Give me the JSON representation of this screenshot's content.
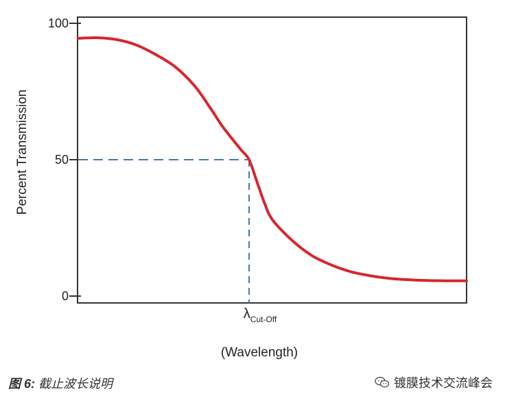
{
  "chart_data": {
    "type": "line",
    "title": "",
    "xlabel": "(Wavelength)",
    "ylabel": "Percent Transmission",
    "ylim": [
      0,
      100
    ],
    "xlim": [
      0,
      1
    ],
    "y_ticks": [
      0,
      50,
      100
    ],
    "grid": false,
    "cutoff": {
      "symbol": "λ",
      "subscript": "Cut-Off",
      "x": 0.44,
      "y": 50
    },
    "series": [
      {
        "color": "#d7262b",
        "x": [
          0.0,
          0.05,
          0.1,
          0.15,
          0.2,
          0.25,
          0.3,
          0.34,
          0.37,
          0.4,
          0.42,
          0.44,
          0.46,
          0.48,
          0.5,
          0.55,
          0.6,
          0.65,
          0.7,
          0.75,
          0.8,
          0.85,
          0.9,
          0.95,
          1.0
        ],
        "y": [
          94.5,
          94.7,
          94.0,
          92.0,
          88.5,
          84.0,
          77.0,
          69.0,
          62.5,
          57.0,
          53.5,
          50.0,
          42.0,
          34.0,
          28.0,
          20.5,
          15.0,
          11.5,
          9.0,
          7.5,
          6.5,
          6.0,
          5.7,
          5.6,
          5.6
        ]
      }
    ],
    "guide_color": "#3a7ab5"
  },
  "caption": {
    "fig_label": "图 6:",
    "text": " 截止波长说明"
  },
  "watermark": {
    "text": "镀膜技术交流峰会"
  }
}
